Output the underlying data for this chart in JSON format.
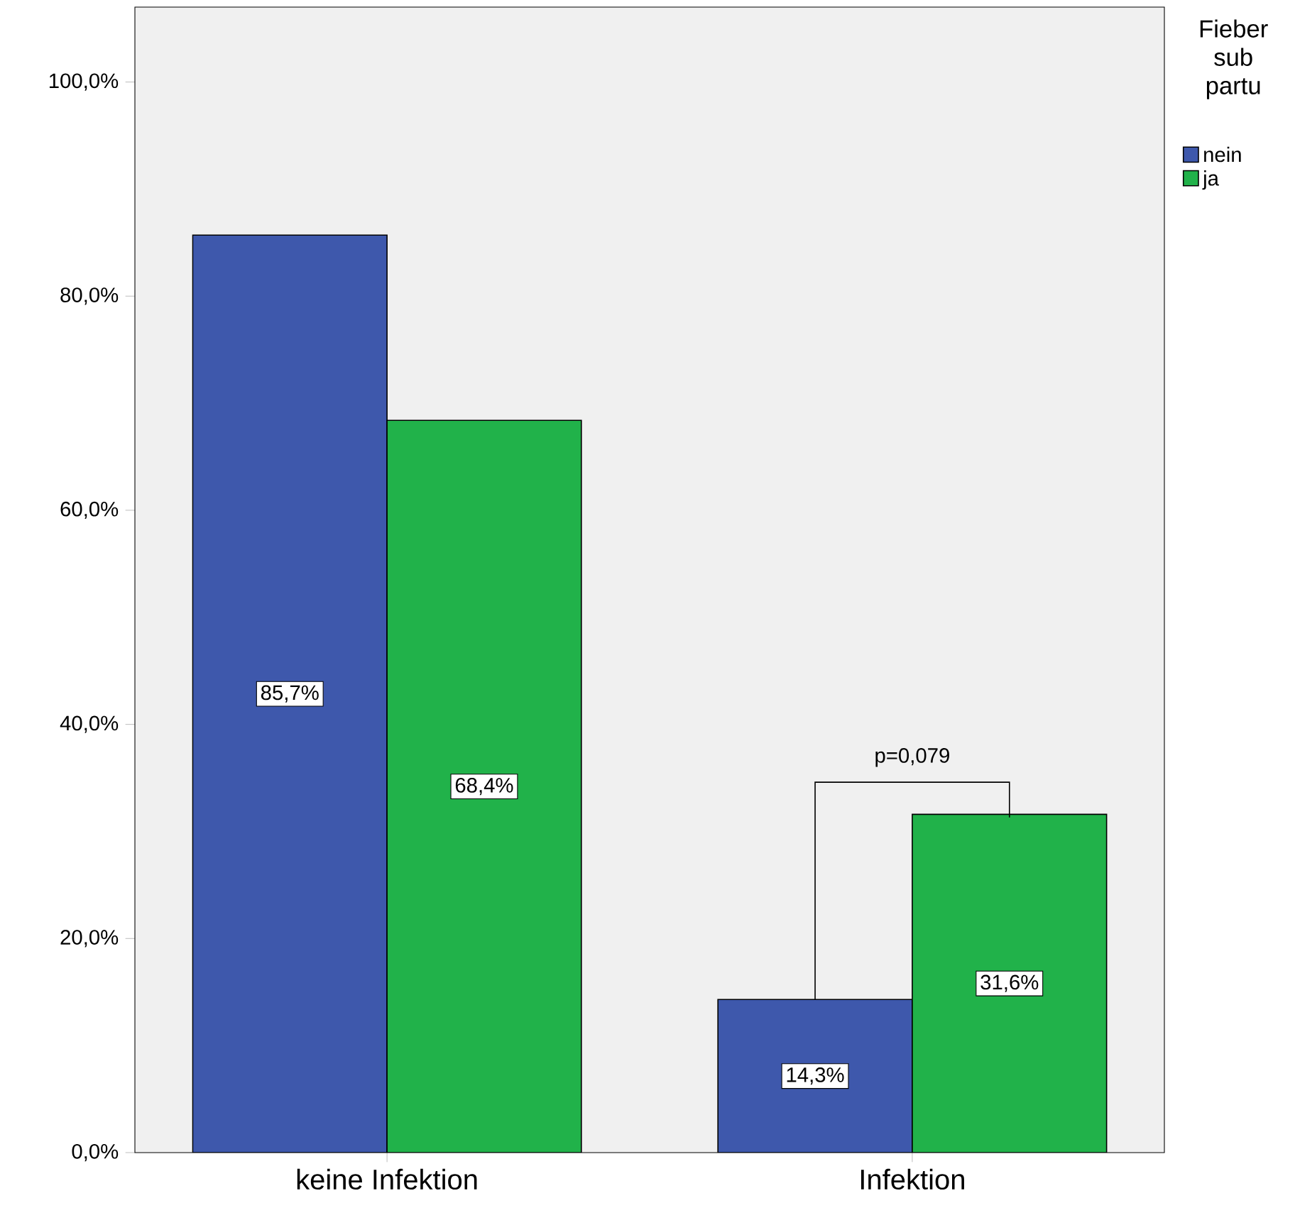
{
  "chart_data": {
    "type": "bar",
    "categories": [
      "keine Infektion",
      "Infektion"
    ],
    "series": [
      {
        "name": "nein",
        "color": "#3e58ac",
        "values": [
          85.7,
          14.3
        ],
        "value_labels": [
          "85,7%",
          "14,3%"
        ]
      },
      {
        "name": "ja",
        "color": "#21b24a",
        "values": [
          68.4,
          31.6
        ],
        "value_labels": [
          "68,4%",
          "31,6%"
        ]
      }
    ],
    "ylim": [
      0,
      107
    ],
    "yticks": [
      {
        "value": 0,
        "label": "0,0%"
      },
      {
        "value": 20,
        "label": "20,0%"
      },
      {
        "value": 40,
        "label": "40,0%"
      },
      {
        "value": 60,
        "label": "60,0%"
      },
      {
        "value": 80,
        "label": "80,0%"
      },
      {
        "value": 100,
        "label": "100,0%"
      }
    ],
    "legend_title": "Fieber sub partu",
    "legend": "top right",
    "annotations": [
      "p=0,079"
    ]
  }
}
